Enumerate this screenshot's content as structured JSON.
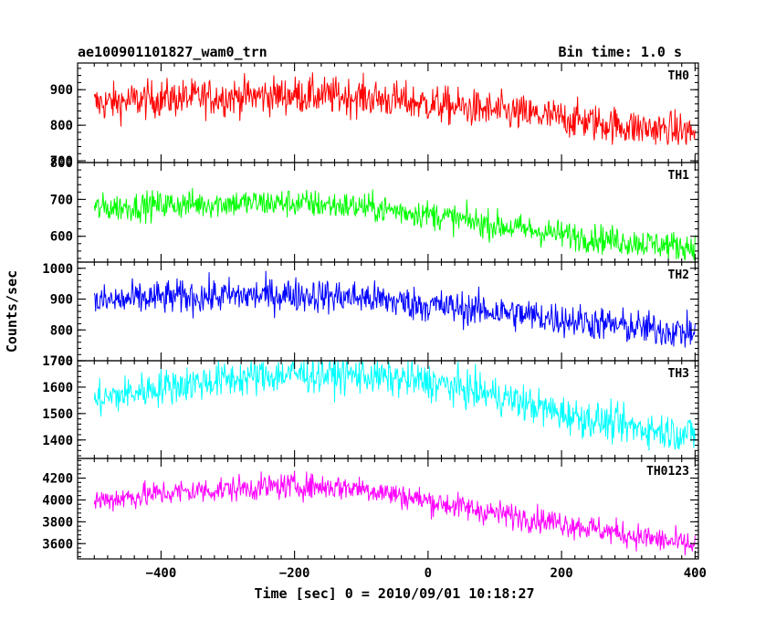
{
  "title_left": "ae100901101827_wam0_trn",
  "title_right": "Bin time: 1.0 s",
  "chart_data": {
    "type": "line",
    "title": "ae100901101827_wam0_trn",
    "subtitle": "Bin time: 1.0 s",
    "xlabel": "Time [sec] 0 = 2010/09/01 10:18:27",
    "ylabel": "Counts/sec",
    "xlim": [
      -525,
      405
    ],
    "x_ticks": [
      -400,
      -200,
      0,
      200,
      400
    ],
    "grid": false,
    "legend": "none",
    "series": [
      {
        "name": "TH0",
        "color": "#ff0000",
        "ylim": [
          695,
          975
        ],
        "y_ticks": [
          700,
          800,
          900
        ],
        "trend_x": [
          -500,
          -400,
          -300,
          -200,
          -100,
          0,
          100,
          200,
          300,
          400
        ],
        "trend_y": [
          860,
          875,
          880,
          885,
          880,
          860,
          840,
          820,
          795,
          780
        ],
        "noise": 38,
        "spike_max": 975,
        "spike_min": 745
      },
      {
        "name": "TH1",
        "color": "#00ff00",
        "ylim": [
          530,
          800
        ],
        "y_ticks": [
          600,
          700,
          800
        ],
        "trend_x": [
          -500,
          -400,
          -300,
          -200,
          -100,
          0,
          100,
          200,
          300,
          400
        ],
        "trend_y": [
          675,
          685,
          690,
          690,
          680,
          660,
          630,
          605,
          585,
          570
        ],
        "noise": 28,
        "spike_max": 790,
        "spike_min": 535
      },
      {
        "name": "TH2",
        "color": "#0000ff",
        "ylim": [
          700,
          1020
        ],
        "y_ticks": [
          700,
          800,
          900,
          1000
        ],
        "trend_x": [
          -500,
          -400,
          -300,
          -200,
          -100,
          0,
          100,
          200,
          300,
          400
        ],
        "trend_y": [
          890,
          905,
          910,
          915,
          905,
          880,
          860,
          835,
          810,
          790
        ],
        "noise": 40,
        "spike_max": 1020,
        "spike_min": 730
      },
      {
        "name": "TH3",
        "color": "#00ffff",
        "ylim": [
          1330,
          1700
        ],
        "y_ticks": [
          1400,
          1500,
          1600,
          1700
        ],
        "trend_x": [
          -500,
          -400,
          -300,
          -200,
          -100,
          0,
          100,
          200,
          300,
          400
        ],
        "trend_y": [
          1550,
          1600,
          1630,
          1650,
          1645,
          1620,
          1570,
          1500,
          1450,
          1420
        ],
        "noise": 50,
        "spike_max": 1700,
        "spike_min": 1360
      },
      {
        "name": "TH0123",
        "color": "#ff00ff",
        "ylim": [
          3460,
          4380
        ],
        "y_ticks": [
          3600,
          3800,
          4000,
          4200
        ],
        "trend_x": [
          -500,
          -400,
          -300,
          -200,
          -100,
          0,
          100,
          200,
          300,
          400
        ],
        "trend_y": [
          3990,
          4060,
          4100,
          4130,
          4110,
          3990,
          3880,
          3790,
          3680,
          3580
        ],
        "noise": 85,
        "spike_max": 4360,
        "spike_min": 3490
      }
    ]
  }
}
